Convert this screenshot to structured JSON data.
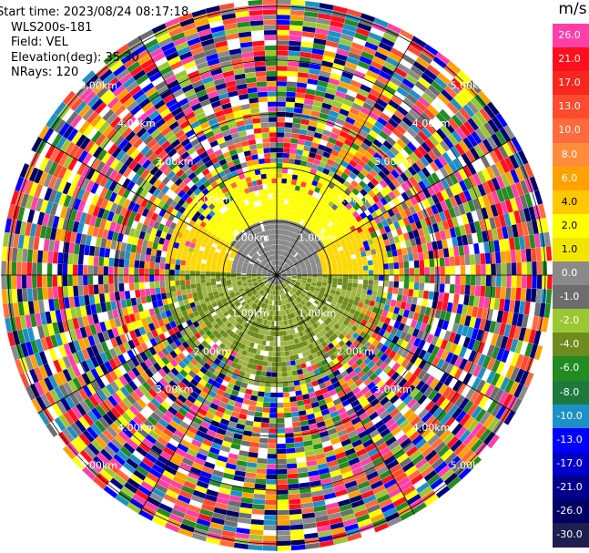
{
  "info": {
    "start_time": "Start time: 2023/08/24 08:17:18",
    "site": "WLS200s-181",
    "field": "Field: VEL",
    "elevation": "Elevation(deg): 35.30",
    "nrays": "NRays: 120"
  },
  "colorbar": {
    "unit": "m/s",
    "entries": [
      {
        "label": "26.0",
        "color": "#ff3fa8",
        "dark_text": false
      },
      {
        "label": "21.0",
        "color": "#ff0f1e",
        "dark_text": false
      },
      {
        "label": "17.0",
        "color": "#f7261e",
        "dark_text": false
      },
      {
        "label": "13.0",
        "color": "#ff4a2e",
        "dark_text": false
      },
      {
        "label": "10.0",
        "color": "#ff6a3c",
        "dark_text": false
      },
      {
        "label": "8.0",
        "color": "#ff8c3a",
        "dark_text": false
      },
      {
        "label": "6.0",
        "color": "#ffa200",
        "dark_text": false
      },
      {
        "label": "4.0",
        "color": "#ffc800",
        "dark_text": true
      },
      {
        "label": "2.0",
        "color": "#ffff00",
        "dark_text": true
      },
      {
        "label": "1.0",
        "color": "#f2e600",
        "dark_text": true
      },
      {
        "label": "0.0",
        "color": "#8a8a8a",
        "dark_text": false
      },
      {
        "label": "-1.0",
        "color": "#6d6d6d",
        "dark_text": false
      },
      {
        "label": "-2.0",
        "color": "#9ac832",
        "dark_text": false
      },
      {
        "label": "-4.0",
        "color": "#6e8c1e",
        "dark_text": false
      },
      {
        "label": "-6.0",
        "color": "#228b22",
        "dark_text": false
      },
      {
        "label": "-8.0",
        "color": "#1e7a3c",
        "dark_text": false
      },
      {
        "label": "-10.0",
        "color": "#1e90c8",
        "dark_text": false
      },
      {
        "label": "-13.0",
        "color": "#0000ff",
        "dark_text": false
      },
      {
        "label": "-17.0",
        "color": "#0000c8",
        "dark_text": false
      },
      {
        "label": "-21.0",
        "color": "#00008c",
        "dark_text": false
      },
      {
        "label": "-26.0",
        "color": "#000064",
        "dark_text": false
      },
      {
        "label": "-30.0",
        "color": "#1e1e50",
        "dark_text": false
      }
    ]
  },
  "range_rings": [
    "1.00km",
    "2.00km",
    "3.00km",
    "4.00km",
    "5.00km"
  ],
  "near_field_colors": [
    "#ffff00",
    "#ffd700",
    "#8a8a8a",
    "#a0b446",
    "#6e8c1e"
  ],
  "far_field_colors": [
    "#ff3fa8",
    "#ff0f1e",
    "#ffff00",
    "#ffa200",
    "#228b22",
    "#0000ff",
    "#000064",
    "#1e90c8",
    "#9ac832",
    "#ff4a2e",
    "#ff6a3c",
    "#8a8a8a",
    "#6d6d6d",
    "#00008c"
  ]
}
